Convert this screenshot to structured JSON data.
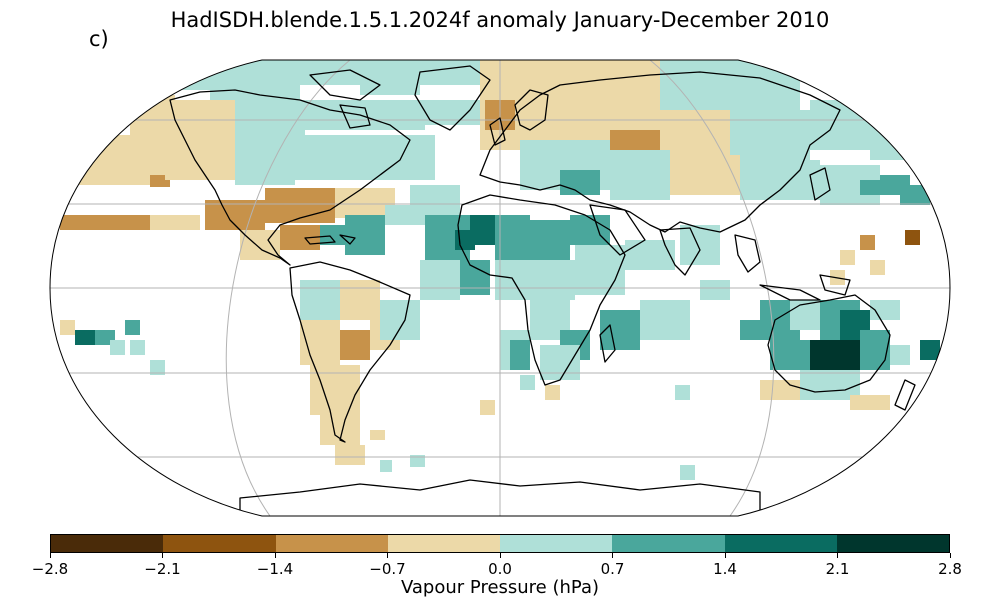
{
  "title": "HadISDH.blende.1.5.1.2024f anomaly January-December 2010",
  "panel_label": "c)",
  "colorbar": {
    "label": "Vapour Pressure (hPa)",
    "ticks": [
      "−2.8",
      "−2.1",
      "−1.4",
      "−0.7",
      "0.0",
      "0.7",
      "1.4",
      "2.1",
      "2.8"
    ],
    "colors": [
      "#4a2b09",
      "#8e540f",
      "#c7924a",
      "#ecd9a8",
      "#afe0d8",
      "#4aa79c",
      "#0a6c61",
      "#00362d"
    ]
  },
  "map": {
    "projection": "Robinson",
    "grid": true,
    "gridline_color": "#b3b3b3",
    "coastline_color": "#000000",
    "missing_color": "#ffffff",
    "anomaly_regions": [
      {
        "region": "Canada / North Atlantic",
        "level": "0.0 to 0.7"
      },
      {
        "region": "Western North America",
        "level": "-0.7 to 0.0"
      },
      {
        "region": "Southern USA / Mexico",
        "level": "-1.4 to -0.7"
      },
      {
        "region": "Europe",
        "level": "-0.7 to 0.0"
      },
      {
        "region": "Russia / Central Asia",
        "level": "-0.7 to 0.0"
      },
      {
        "region": "East Asia",
        "level": "0.0 to 0.7"
      },
      {
        "region": "West Africa",
        "level": "1.4 to 2.1"
      },
      {
        "region": "South America",
        "level": "-0.7 to 0.0"
      },
      {
        "region": "Eastern Australia",
        "level": "2.1 to 2.8"
      },
      {
        "region": "Pacific Islands",
        "level": "0.7 to 1.4"
      }
    ]
  }
}
